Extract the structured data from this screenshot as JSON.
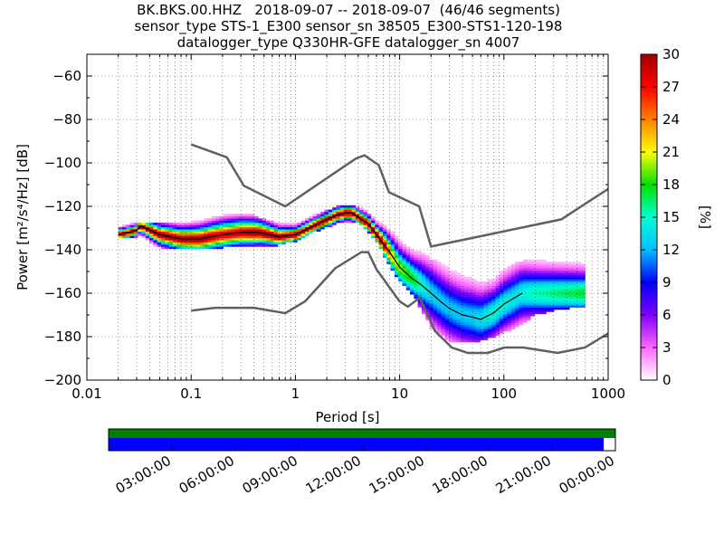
{
  "title_lines": [
    "BK.BKS.00.HHZ   2018-09-07 -- 2018-09-07  (46/46 segments)",
    "sensor_type STS-1_E300 sensor_sn 38505_E300-STS1-120-198",
    "datalogger_type Q330HR-GFE datalogger_sn 4007"
  ],
  "colors": {
    "noise_model": "#606060",
    "mode_line": "#000000",
    "coverage_top": "#008000",
    "coverage_bottom": "#0000ff",
    "axes": "#000000",
    "grid": "#000000"
  },
  "chart_data": {
    "type": "heatmap",
    "title": "BK.BKS.00.HHZ   2018-09-07 -- 2018-09-07  (46/46 segments)",
    "xlabel": "Period [s]",
    "ylabel": "Power [m²/s⁴/Hz] [dB]",
    "colorbar_label": "[%]",
    "x_scale": "log",
    "xlim": [
      0.01,
      1000
    ],
    "ylim": [
      -200,
      -50
    ],
    "x_tick_labels": [
      "0.01",
      "0.1",
      "1",
      "10",
      "100",
      "1000"
    ],
    "x_ticks": [
      0.01,
      0.1,
      1,
      10,
      100,
      1000
    ],
    "y_ticks": [
      -200,
      -180,
      -160,
      -140,
      -120,
      -100,
      -80,
      -60
    ],
    "y_tick_labels": [
      "−200",
      "−180",
      "−160",
      "−140",
      "−120",
      "−100",
      "−80",
      "−60"
    ],
    "colorbar_ticks": [
      0,
      3,
      6,
      9,
      12,
      15,
      18,
      21,
      24,
      27,
      30
    ],
    "colorbar_tick_labels": [
      "0",
      "3",
      "6",
      "9",
      "12",
      "15",
      "18",
      "21",
      "24",
      "27",
      "30"
    ],
    "colorbar_range": [
      0,
      30
    ],
    "grid": true,
    "high_noise_model": {
      "period": [
        0.1,
        0.22,
        0.32,
        0.8,
        3.8,
        4.6,
        6.3,
        7.9,
        15.4,
        20,
        354.8,
        1000
      ],
      "power": [
        -91.5,
        -97.4,
        -110.5,
        -120,
        -98,
        -96.5,
        -101,
        -113.5,
        -120,
        -138.5,
        -126,
        -112
      ]
    },
    "low_noise_model": {
      "period": [
        0.1,
        0.17,
        0.4,
        0.8,
        1.24,
        2.4,
        4.3,
        5,
        6,
        10,
        12,
        15.6,
        21.9,
        31.6,
        45,
        70,
        101,
        154,
        328,
        600,
        1000
      ],
      "power": [
        -168,
        -166.7,
        -166.7,
        -169.2,
        -163.7,
        -148.6,
        -141.1,
        -141.1,
        -149,
        -163.8,
        -166.2,
        -162.1,
        -177.5,
        -185,
        -187.5,
        -187.5,
        -185,
        -185,
        -187.5,
        -185,
        -178.5
      ]
    },
    "mode_line": {
      "period": [
        0.02,
        0.025,
        0.03,
        0.033,
        0.05,
        0.08,
        0.12,
        0.2,
        0.3,
        0.45,
        0.7,
        1,
        1.5,
        2,
        2.5,
        3,
        3.5,
        4,
        5,
        6,
        8,
        10,
        13,
        16,
        20,
        25,
        30,
        40,
        50,
        60,
        80,
        100,
        150
      ],
      "power": [
        -133,
        -132,
        -131,
        -129,
        -133,
        -135,
        -135,
        -133,
        -132,
        -132,
        -134,
        -133,
        -129,
        -126,
        -124,
        -123,
        -123,
        -125,
        -128,
        -133,
        -141,
        -148,
        -153,
        -156,
        -160,
        -164,
        -167,
        -170,
        -171,
        -172,
        -169,
        -165,
        -160
      ]
    },
    "spread_band": {
      "period": [
        0.03,
        0.05,
        0.1,
        0.2,
        0.4,
        0.7,
        1,
        1.5,
        2.5,
        4,
        6,
        9,
        14,
        20,
        30,
        50,
        80,
        130,
        200,
        300,
        600
      ],
      "upper": [
        -128,
        -128,
        -127,
        -124,
        -124,
        -128,
        -128,
        -124,
        -120,
        -119,
        -126,
        -132,
        -138,
        -144,
        -148,
        -150,
        -152,
        -146,
        -143,
        -142,
        -142
      ],
      "lower": [
        -134,
        -139,
        -140,
        -139,
        -138,
        -138,
        -136,
        -132,
        -128,
        -127,
        -136,
        -152,
        -162,
        -176,
        -182,
        -183,
        -180,
        -176,
        -170,
        -168,
        -166
      ]
    },
    "coverage_ticks": [
      "03:00:00",
      "06:00:00",
      "09:00:00",
      "12:00:00",
      "15:00:00",
      "18:00:00",
      "21:00:00",
      "00:00:00"
    ],
    "coverage_data_fraction": 0.977
  }
}
